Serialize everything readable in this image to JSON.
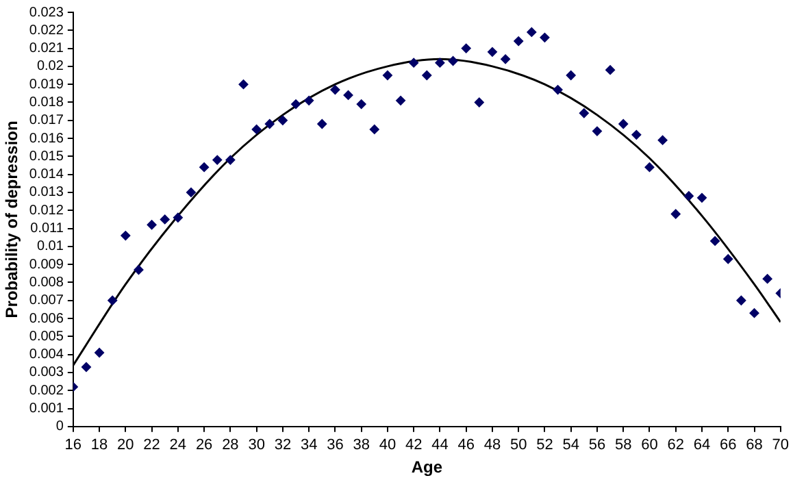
{
  "chart_data": {
    "type": "scatter",
    "xlabel": "Age",
    "ylabel": "Probability of depression",
    "xlim": [
      16,
      70
    ],
    "xticks": [
      16,
      18,
      20,
      22,
      24,
      26,
      28,
      30,
      32,
      34,
      36,
      38,
      40,
      42,
      44,
      46,
      48,
      50,
      52,
      54,
      56,
      58,
      60,
      62,
      64,
      66,
      68,
      70
    ],
    "ylim": [
      0,
      0.023
    ],
    "yticks": [
      0,
      0.001,
      0.002,
      0.003,
      0.004,
      0.005,
      0.006,
      0.007,
      0.008,
      0.009,
      0.01,
      0.011,
      0.012,
      0.013,
      0.014,
      0.015,
      0.016,
      0.017,
      0.018,
      0.019,
      0.02,
      0.021,
      0.022,
      0.023
    ],
    "grid": false,
    "legend": false,
    "marker": "diamond",
    "series": [
      {
        "color": "#000066",
        "x": [
          16,
          17,
          18,
          19,
          20,
          21,
          22,
          23,
          24,
          25,
          26,
          27,
          28,
          29,
          30,
          31,
          32,
          33,
          34,
          35,
          36,
          37,
          38,
          39,
          40,
          41,
          42,
          43,
          44,
          45,
          46,
          47,
          48,
          49,
          50,
          51,
          52,
          53,
          54,
          55,
          56,
          57,
          58,
          59,
          60,
          61,
          62,
          63,
          64,
          65,
          66,
          67,
          68,
          69,
          70
        ],
        "values": [
          0.0022,
          0.0033,
          0.0041,
          0.007,
          0.0106,
          0.0087,
          0.0112,
          0.0115,
          0.0116,
          0.013,
          0.0144,
          0.0148,
          0.0148,
          0.019,
          0.0165,
          0.0168,
          0.017,
          0.0179,
          0.0181,
          0.0168,
          0.0187,
          0.0184,
          0.0179,
          0.0165,
          0.0195,
          0.0181,
          0.0202,
          0.0195,
          0.0202,
          0.0203,
          0.021,
          0.018,
          0.0208,
          0.0204,
          0.0214,
          0.0219,
          0.0216,
          0.0187,
          0.0195,
          0.0174,
          0.0164,
          0.0198,
          0.0168,
          0.0162,
          0.0144,
          0.0159,
          0.0118,
          0.0128,
          0.0127,
          0.0103,
          0.0093,
          0.007,
          0.0063,
          0.0082,
          0.0074
        ]
      },
      {
        "type": "line",
        "color": "#000000",
        "marker": "none",
        "x": [
          16,
          20,
          24,
          28,
          32,
          36,
          40,
          44,
          48,
          52,
          56,
          60,
          64,
          68,
          70
        ],
        "values": [
          0.0034,
          0.0079,
          0.0117,
          0.0149,
          0.0173,
          0.019,
          0.02,
          0.0204,
          0.02,
          0.019,
          0.0173,
          0.0149,
          0.0117,
          0.0079,
          0.0058
        ]
      }
    ]
  }
}
